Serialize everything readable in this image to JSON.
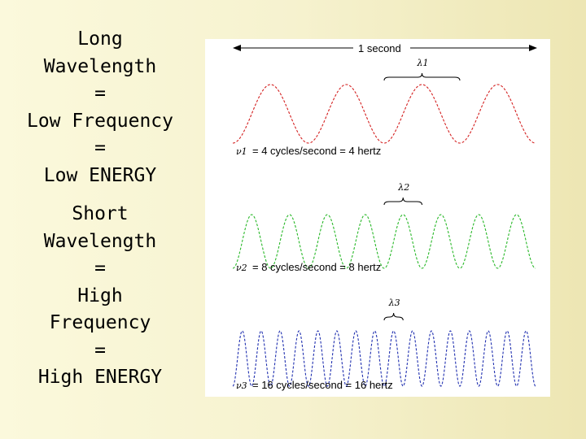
{
  "left_panel": {
    "long_lines": [
      "Long",
      "Wavelength",
      "=",
      "Low Frequency",
      "=",
      "Low ENERGY"
    ],
    "short_lines": [
      "Short",
      "Wavelength",
      "=",
      "High",
      "Frequency",
      "=",
      "High ENERGY"
    ]
  },
  "figure": {
    "span_label": "1 second",
    "waves": [
      {
        "color": "#d42020",
        "cycles": 4,
        "lambda": "λ1",
        "nu": "ν1",
        "equation": "= 4 cycles/second = 4 hertz"
      },
      {
        "color": "#28b828",
        "cycles": 8,
        "lambda": "λ2",
        "nu": "ν2",
        "equation": "= 8 cycles/second = 8 hertz"
      },
      {
        "color": "#2030b0",
        "cycles": 16,
        "lambda": "λ3",
        "nu": "ν3",
        "equation": "= 16 cycles/second = 16 hertz"
      }
    ]
  }
}
